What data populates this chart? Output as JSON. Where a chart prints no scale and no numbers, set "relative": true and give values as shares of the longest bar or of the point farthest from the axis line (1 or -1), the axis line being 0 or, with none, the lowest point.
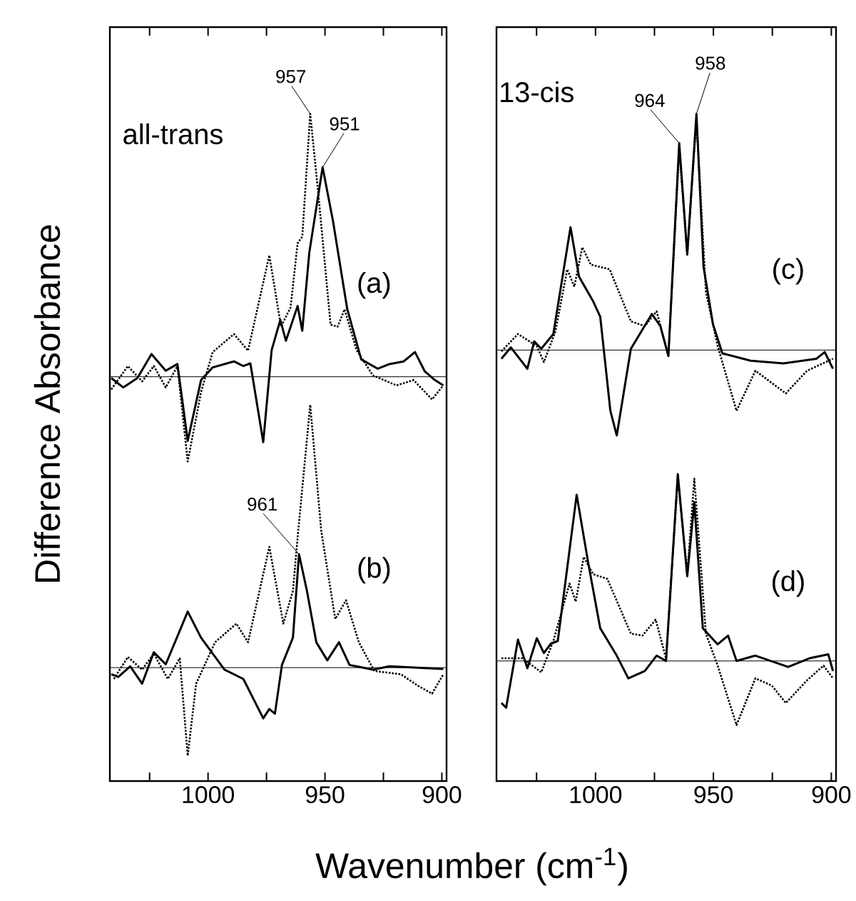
{
  "chart_data": [
    {
      "type": "line",
      "relative": true,
      "xlabel": "Wavenumber (cm$^{-1}$)",
      "ylabel": "Difference Absorbance",
      "xlim": [
        1042,
        898
      ],
      "xticks": [
        {
          "value": 1025,
          "label": null
        },
        1000,
        {
          "value": 975,
          "label": null
        },
        950,
        {
          "value": 925,
          "label": null
        },
        900
      ],
      "series": [
        {
          "color": "#000000",
          "line_style": "solid",
          "x": [
            1041.4,
            1036.3,
            1030.2,
            1024.2,
            1018.1,
            1013.1,
            1008.7,
            1003.0,
            998.0,
            988.9,
            984.9,
            981.9,
            976.4,
            972.8,
            969.1,
            966.7,
            961.7,
            959.7,
            956.7,
            951.0,
            946.6,
            940.5,
            934.5,
            927.4,
            922.4,
            916.3,
            911.5,
            907.3,
            903.0,
            899.4
          ],
          "values": [
            0.604,
            0.59,
            0.604,
            0.64,
            0.615,
            0.625,
            0.51,
            0.601,
            0.62,
            0.629,
            0.622,
            0.626,
            0.508,
            0.646,
            0.691,
            0.66,
            0.712,
            0.675,
            0.792,
            0.92,
            0.84,
            0.708,
            0.632,
            0.618,
            0.625,
            0.629,
            0.643,
            0.614,
            0.601,
            0.593
          ]
        },
        {
          "color": "#000000",
          "line_style": "dotted",
          "x": [
            1041.4,
            1034.3,
            1028.2,
            1023.2,
            1018.1,
            1013.1,
            1008.7,
            1003.0,
            998.0,
            988.9,
            982.9,
            973.8,
            968.8,
            964.7,
            961.7,
            959.7,
            956.3,
            952.7,
            947.6,
            944.6,
            941.6,
            936.5,
            929.5,
            919.4,
            912.1,
            904.2,
            899.4
          ],
          "values": [
            0.587,
            0.622,
            0.599,
            0.622,
            0.59,
            0.622,
            0.479,
            0.583,
            0.643,
            0.67,
            0.645,
            0.788,
            0.681,
            0.71,
            0.806,
            0.816,
            1.0,
            0.875,
            0.684,
            0.681,
            0.707,
            0.646,
            0.608,
            0.593,
            0.601,
            0.572,
            0.593
          ]
        },
        {
          "color": "#000000",
          "line_style": "solid",
          "x": [
            1041.4,
            1038.4,
            1033.3,
            1028.2,
            1023.2,
            1018.1,
            1008.7,
            1003.0,
            993.0,
            984.9,
            976.4,
            973.8,
            971.4,
            968.4,
            963.7,
            961.1,
            957.7,
            953.7,
            949.0,
            944.0,
            939.5,
            929.5,
            922.4,
            910.3,
            899.4
          ],
          "values": [
            0.16,
            0.156,
            0.172,
            0.146,
            0.193,
            0.175,
            0.254,
            0.215,
            0.167,
            0.153,
            0.094,
            0.108,
            0.101,
            0.174,
            0.215,
            0.34,
            0.285,
            0.208,
            0.181,
            0.208,
            0.174,
            0.167,
            0.172,
            0.17,
            0.168
          ]
        },
        {
          "color": "#000000",
          "line_style": "dotted",
          "x": [
            1040.3,
            1034.3,
            1028.2,
            1023.2,
            1017.2,
            1012.1,
            1008.7,
            1005.1,
            997.0,
            987.9,
            982.9,
            973.8,
            967.8,
            963.7,
            961.7,
            956.3,
            951.6,
            945.6,
            941.0,
            935.5,
            928.9,
            917.5,
            910.3,
            904.2,
            899.4
          ],
          "values": [
            0.153,
            0.186,
            0.167,
            0.191,
            0.153,
            0.184,
            0.038,
            0.146,
            0.208,
            0.236,
            0.208,
            0.351,
            0.236,
            0.285,
            0.365,
            0.564,
            0.375,
            0.243,
            0.271,
            0.208,
            0.165,
            0.16,
            0.143,
            0.131,
            0.16
          ]
        }
      ],
      "ref_lines": [
        {
          "axis": "y",
          "value": 0.606,
          "color": "#000000"
        },
        {
          "axis": "y",
          "value": 0.17,
          "color": "#000000"
        }
      ],
      "annotations": [
        {
          "text": "957",
          "x": 956.3,
          "y": 1.0
        },
        {
          "text": "951",
          "x": 951.0,
          "y": 0.92
        },
        {
          "text": "961",
          "x": 961.1,
          "y": 0.34
        },
        "all-trans",
        "(a)",
        "(b)"
      ]
    },
    {
      "type": "line",
      "relative": true,
      "xlim": [
        1042,
        898
      ],
      "xticks": [
        {
          "value": 1025,
          "label": null
        },
        1000,
        {
          "value": 975,
          "label": null
        },
        950,
        {
          "value": 925,
          "label": null
        },
        900
      ],
      "series": [
        {
          "color": "#000000",
          "line_style": "solid",
          "x": [
            1039.9,
            1035.9,
            1028.9,
            1026.0,
            1023.0,
            1017.9,
            1010.6,
            1007.0,
            1001.0,
            998.0,
            993.7,
            991.0,
            985.0,
            976.1,
            972.5,
            969.1,
            964.5,
            961.1,
            957.2,
            954.2,
            950.2,
            946.2,
            934.2,
            920.3,
            906.3,
            902.8,
            899.3
          ],
          "values": [
            0.633,
            0.65,
            0.618,
            0.659,
            0.648,
            0.67,
            0.83,
            0.756,
            0.719,
            0.696,
            0.555,
            0.518,
            0.648,
            0.7,
            0.682,
            0.637,
            0.956,
            0.789,
            1.0,
            0.771,
            0.685,
            0.641,
            0.63,
            0.626,
            0.633,
            0.643,
            0.618
          ]
        },
        {
          "color": "#000000",
          "line_style": "dotted",
          "x": [
            1039.9,
            1032.9,
            1024.9,
            1021.9,
            1017.0,
            1012.0,
            1009.0,
            1005.6,
            1002.0,
            994.0,
            985.0,
            979.1,
            974.1,
            969.1,
            964.5,
            961.1,
            957.2,
            953.2,
            948.2,
            940.2,
            932.2,
            919.3,
            910.3,
            899.3
          ],
          "values": [
            0.644,
            0.67,
            0.652,
            0.628,
            0.674,
            0.767,
            0.741,
            0.8,
            0.774,
            0.767,
            0.689,
            0.682,
            0.704,
            0.637,
            0.949,
            0.789,
            0.993,
            0.733,
            0.652,
            0.555,
            0.615,
            0.581,
            0.615,
            0.633
          ]
        },
        {
          "color": "#000000",
          "line_style": "solid",
          "x": [
            1039.9,
            1037.9,
            1032.9,
            1028.9,
            1024.9,
            1021.9,
            1018.9,
            1016.0,
            1008.0,
            1003.0,
            998.0,
            991.0,
            986.1,
            979.1,
            974.1,
            970.1,
            965.1,
            961.1,
            958.1,
            954.5,
            948.2,
            943.8,
            940.2,
            932.2,
            918.3,
            909.3,
            901.3,
            899.3
          ],
          "values": [
            0.117,
            0.11,
            0.212,
            0.169,
            0.214,
            0.192,
            0.206,
            0.21,
            0.429,
            0.325,
            0.229,
            0.188,
            0.154,
            0.165,
            0.188,
            0.18,
            0.46,
            0.307,
            0.418,
            0.229,
            0.205,
            0.218,
            0.18,
            0.188,
            0.171,
            0.184,
            0.19,
            0.165
          ]
        },
        {
          "color": "#000000",
          "line_style": "dotted",
          "x": [
            1039.9,
            1030.9,
            1023.0,
            1017.9,
            1011.0,
            1008.4,
            1005.0,
            1001.0,
            995.0,
            985.0,
            980.1,
            974.5,
            970.1,
            965.1,
            961.1,
            958.1,
            953.2,
            948.2,
            940.2,
            932.2,
            925.2,
            919.3,
            910.3,
            903.3,
            899.3
          ],
          "values": [
            0.184,
            0.184,
            0.163,
            0.21,
            0.296,
            0.269,
            0.336,
            0.31,
            0.303,
            0.221,
            0.218,
            0.242,
            0.184,
            0.455,
            0.31,
            0.453,
            0.221,
            0.173,
            0.084,
            0.154,
            0.143,
            0.117,
            0.151,
            0.173,
            0.154
          ]
        }
      ],
      "ref_lines": [
        {
          "axis": "y",
          "value": 0.646,
          "color": "#000000"
        },
        {
          "axis": "y",
          "value": 0.18,
          "color": "#000000"
        }
      ],
      "annotations": [
        {
          "text": "964",
          "x": 964.5,
          "y": 0.956
        },
        {
          "text": "958",
          "x": 957.2,
          "y": 1.0
        },
        "13-cis",
        "(c)",
        "(d)"
      ]
    }
  ]
}
